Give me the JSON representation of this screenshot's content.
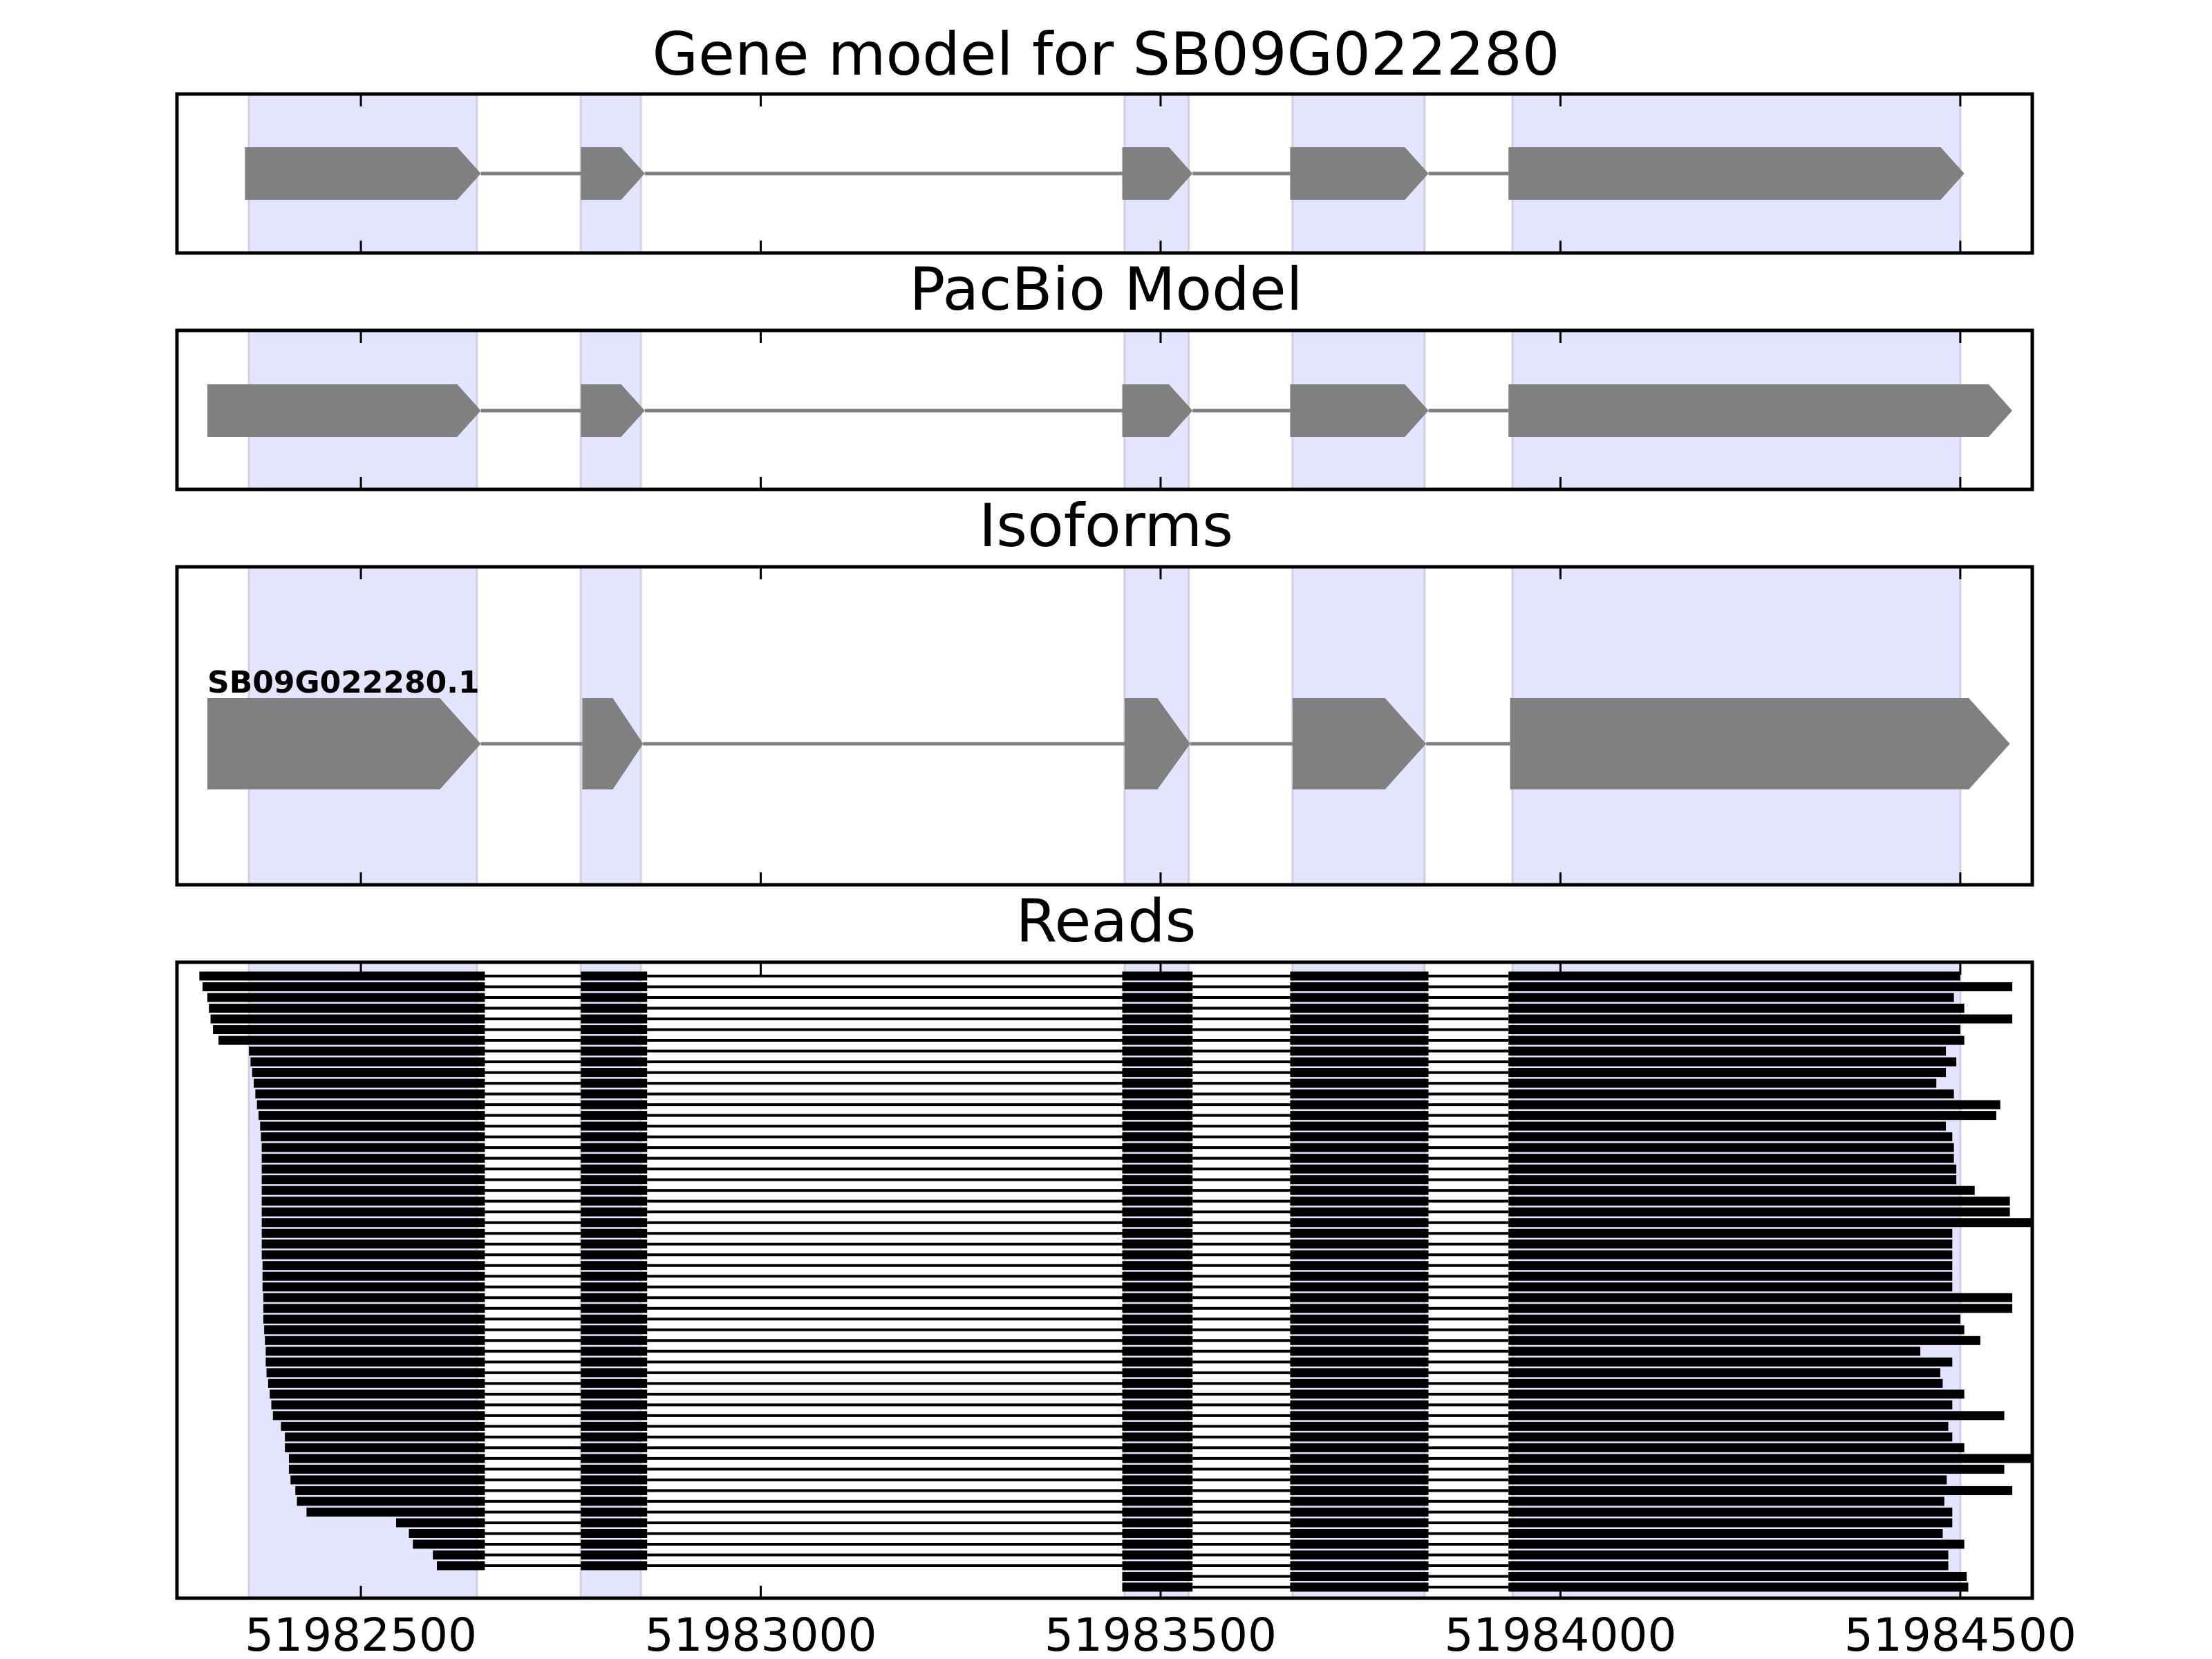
{
  "chart_data": {
    "type": "gene-structure",
    "xlim": [
      51982270,
      51984590
    ],
    "x_ticks": [
      51982500,
      51983000,
      51983500,
      51984000,
      51984500
    ],
    "x_tick_labels": [
      "51982500",
      "51983000",
      "51983500",
      "51984000",
      "51984500"
    ],
    "colors": {
      "exon_highlight": "#e4e4ff",
      "exon_highlight_edge": "#cfcfe6",
      "feature": "#808080",
      "read": "#000000",
      "frame": "#000000"
    },
    "exon_highlights": [
      [
        51982360,
        51982645
      ],
      [
        51982775,
        51982850
      ],
      [
        51983455,
        51983535
      ],
      [
        51983665,
        51983830
      ],
      [
        51983940,
        51984500
      ]
    ],
    "panels": [
      {
        "title": "Gene model for SB09G022280",
        "exons": [
          [
            51982355,
            51982650
          ],
          [
            51982775,
            51982855
          ],
          [
            51983452,
            51983540
          ],
          [
            51983662,
            51983835
          ],
          [
            51983935,
            51984505
          ]
        ]
      },
      {
        "title": "PacBio Model",
        "exons": [
          [
            51982308,
            51982650
          ],
          [
            51982775,
            51982855
          ],
          [
            51983452,
            51983540
          ],
          [
            51983662,
            51983835
          ],
          [
            51983935,
            51984565
          ]
        ]
      },
      {
        "title": "Isoforms",
        "isoforms": [
          {
            "label": "SB09G022280.1",
            "exons": [
              [
                51982308,
                51982650
              ],
              [
                51982777,
                51982853
              ],
              [
                51983455,
                51983537
              ],
              [
                51983665,
                51983832
              ],
              [
                51983937,
                51984562
              ]
            ]
          }
        ]
      },
      {
        "title": "Reads",
        "read_count": 58,
        "read_starts": [
          51982298,
          51982302,
          51982308,
          51982310,
          51982312,
          51982315,
          51982322,
          51982360,
          51982362,
          51982364,
          51982366,
          51982368,
          51982370,
          51982372,
          51982374,
          51982375,
          51982376,
          51982376,
          51982376,
          51982376,
          51982376,
          51982376,
          51982376,
          51982376,
          51982376,
          51982376,
          51982376,
          51982377,
          51982377,
          51982377,
          51982378,
          51982378,
          51982378,
          51982379,
          51982380,
          51982381,
          51982381,
          51982382,
          51982384,
          51982386,
          51982388,
          51982390,
          51982400,
          51982405,
          51982405,
          51982410,
          51982410,
          51982412,
          51982418,
          51982420,
          51982432,
          51982544,
          51982560,
          51982565,
          51982590,
          51982595,
          51983434,
          51983434
        ],
        "read_ends": [
          51984500,
          51984565,
          51984492,
          51984505,
          51984565,
          51984500,
          51984505,
          51984482,
          51984495,
          51984482,
          51984470,
          51984492,
          51984550,
          51984545,
          51984482,
          51984490,
          51984492,
          51984492,
          51984495,
          51984495,
          51984518,
          51984562,
          51984562,
          51984590,
          51984490,
          51984490,
          51984490,
          51984490,
          51984490,
          51984490,
          51984565,
          51984565,
          51984500,
          51984505,
          51984525,
          51984450,
          51984490,
          51984475,
          51984478,
          51984505,
          51984490,
          51984555,
          51984485,
          51984490,
          51984505,
          51984590,
          51984555,
          51984483,
          51984565,
          51984480,
          51984490,
          51984490,
          51984478,
          51984505,
          51984485,
          51984485,
          51984508,
          51984510
        ],
        "read_blocks": [
          [
            null,
            51982655
          ],
          [
            51982775,
            51982858
          ],
          [
            51983452,
            51983540
          ],
          [
            51983662,
            51983835
          ],
          [
            51983935,
            null
          ]
        ]
      }
    ]
  }
}
